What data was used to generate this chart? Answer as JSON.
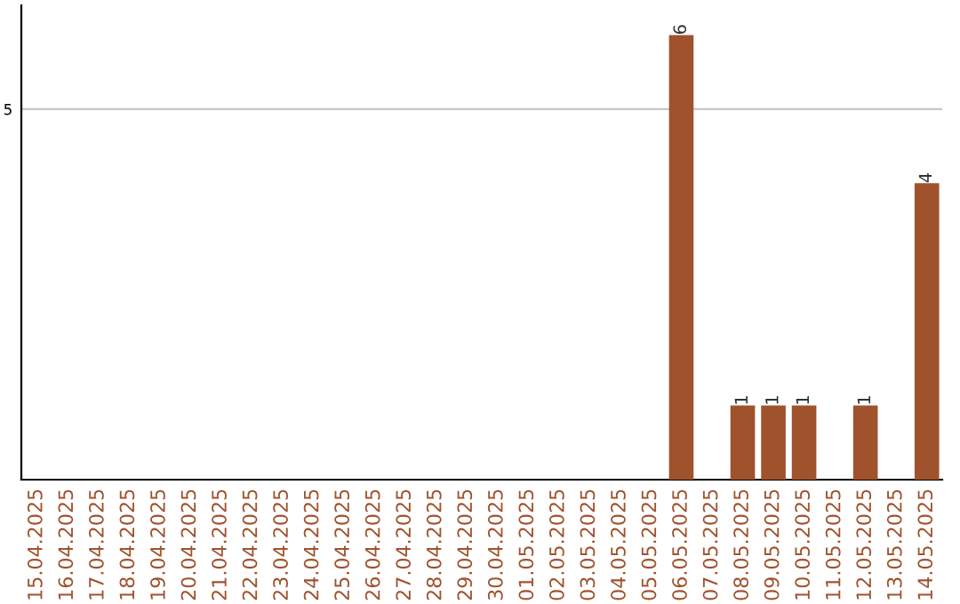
{
  "chart_data": {
    "type": "bar",
    "categories": [
      "15.04.2025",
      "16.04.2025",
      "17.04.2025",
      "18.04.2025",
      "19.04.2025",
      "20.04.2025",
      "21.04.2025",
      "22.04.2025",
      "23.04.2025",
      "24.04.2025",
      "25.04.2025",
      "26.04.2025",
      "27.04.2025",
      "28.04.2025",
      "29.04.2025",
      "30.04.2025",
      "01.05.2025",
      "02.05.2025",
      "03.05.2025",
      "04.05.2025",
      "05.05.2025",
      "06.05.2025",
      "07.05.2025",
      "08.05.2025",
      "09.05.2025",
      "10.05.2025",
      "11.05.2025",
      "12.05.2025",
      "13.05.2025",
      "14.05.2025"
    ],
    "values": [
      null,
      null,
      null,
      null,
      null,
      null,
      null,
      null,
      null,
      null,
      null,
      null,
      null,
      null,
      null,
      null,
      null,
      null,
      null,
      null,
      null,
      6,
      null,
      1,
      1,
      1,
      null,
      1,
      null,
      4
    ],
    "data_labels": true,
    "color": "#a0522d",
    "ylim": [
      0,
      6.4
    ],
    "yticks": [
      5
    ],
    "grid": "y"
  }
}
